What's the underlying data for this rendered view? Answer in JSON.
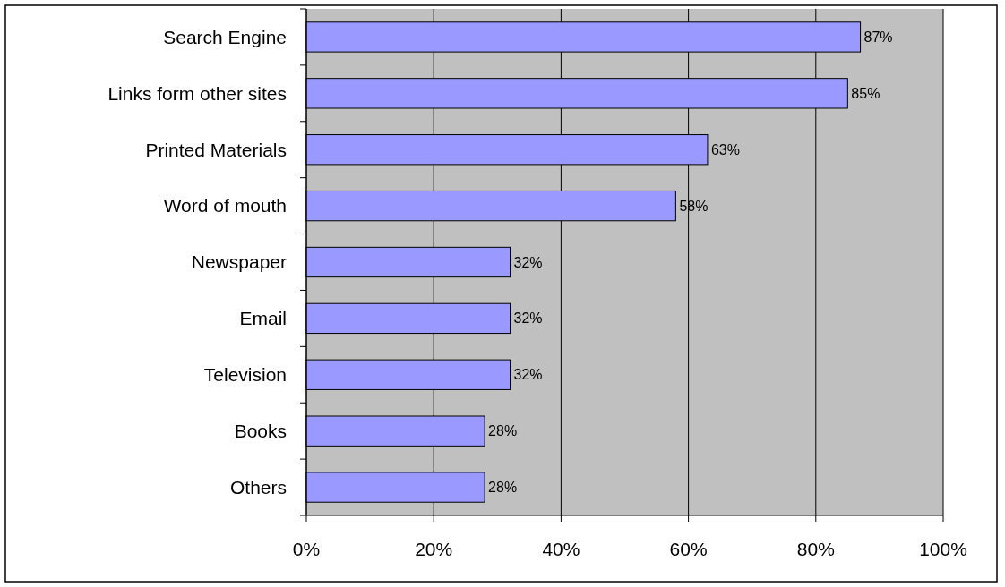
{
  "chart_data": {
    "type": "bar",
    "orientation": "horizontal",
    "categories": [
      "Search Engine",
      "Links form other sites",
      "Printed Materials",
      "Word of mouth",
      "Newspaper",
      "Email",
      "Television",
      "Books",
      "Others"
    ],
    "values": [
      87,
      85,
      63,
      58,
      32,
      32,
      32,
      28,
      28
    ],
    "value_labels": [
      "87%",
      "85%",
      "63%",
      "58%",
      "32%",
      "32%",
      "32%",
      "28%",
      "28%"
    ],
    "color": "#9999ff",
    "xlim": [
      0,
      100
    ],
    "xticks": [
      {
        "value": 0,
        "label": "0%"
      },
      {
        "value": 20,
        "label": "20%"
      },
      {
        "value": 40,
        "label": "40%"
      },
      {
        "value": 60,
        "label": "60%"
      },
      {
        "value": 80,
        "label": "80%"
      },
      {
        "value": 100,
        "label": "100%"
      }
    ],
    "grid": "x"
  }
}
